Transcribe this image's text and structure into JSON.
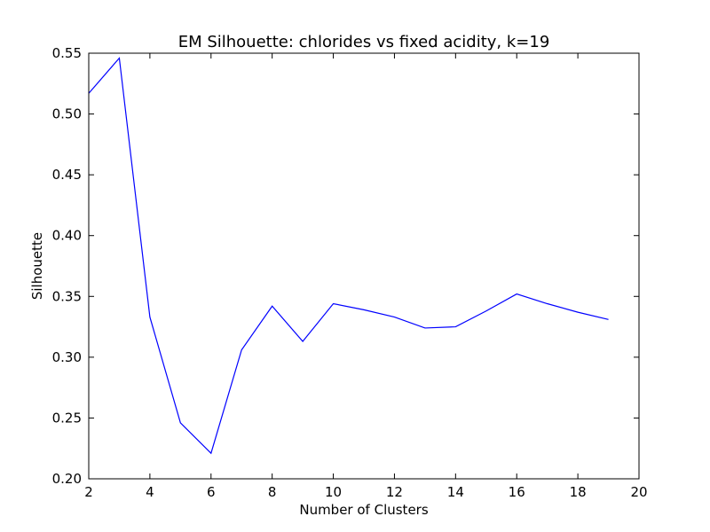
{
  "chart_data": {
    "type": "line",
    "title": "EM Silhouette: chlorides vs fixed acidity, k=19",
    "xlabel": "Number of Clusters",
    "ylabel": "Silhouette",
    "xlim": [
      2,
      20
    ],
    "ylim": [
      0.2,
      0.55
    ],
    "xticks": [
      2,
      4,
      6,
      8,
      10,
      12,
      14,
      16,
      18,
      20
    ],
    "yticks": [
      0.2,
      0.25,
      0.3,
      0.35,
      0.4,
      0.45,
      0.5,
      0.55
    ],
    "ytick_labels": [
      "0.20",
      "0.25",
      "0.30",
      "0.35",
      "0.40",
      "0.45",
      "0.50",
      "0.55"
    ],
    "grid": false,
    "legend": "none",
    "series": [
      {
        "color": "#0000ff",
        "x": [
          2,
          3,
          4,
          5,
          6,
          7,
          8,
          9,
          10,
          11,
          12,
          13,
          14,
          15,
          16,
          17,
          18,
          19
        ],
        "values": [
          0.517,
          0.546,
          0.333,
          0.246,
          0.221,
          0.306,
          0.342,
          0.313,
          0.344,
          0.339,
          0.333,
          0.324,
          0.325,
          0.338,
          0.352,
          0.344,
          0.337,
          0.331
        ]
      }
    ]
  }
}
